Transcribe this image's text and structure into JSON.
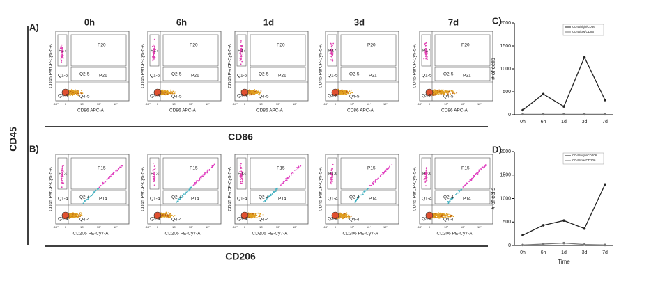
{
  "shared_y_marker": "CD45",
  "panel_a": {
    "label": "A)",
    "timepoints": [
      "0h",
      "6h",
      "1d",
      "3d",
      "7d"
    ],
    "gates": [
      "P17",
      "P20",
      "Q1-5",
      "Q2-5",
      "P21",
      "Q3-5",
      "Q4-5"
    ],
    "y_axis": "CD45 PerCP-Cy5-5-A",
    "x_axis": "CD86 APC-A",
    "marker": "CD86"
  },
  "panel_b": {
    "label": "B)",
    "gates": [
      "P13",
      "P15",
      "Q1-4",
      "Q2-4",
      "P14",
      "Q3-4",
      "Q4-4"
    ],
    "y_axis": "CD45 PerCP-Cy5-5-A",
    "x_axis": "CD206 PE-Cy7-A",
    "marker": "CD206"
  },
  "flow_ticks": [
    "-10³",
    "0",
    "10³",
    "10⁴",
    "10⁵"
  ],
  "chart_data": [
    {
      "type": "line",
      "label": "C)",
      "y_label": "# of cells",
      "categories": [
        "0h",
        "6h",
        "1d",
        "3d",
        "7d"
      ],
      "ylim": [
        0,
        2000
      ],
      "yticks": [
        0,
        500,
        1000,
        1500,
        2000
      ],
      "series": [
        {
          "name": "CD45high/CD86",
          "color": "#222222",
          "values": [
            100,
            450,
            180,
            1250,
            320
          ]
        },
        {
          "name": "CD45low/CD86",
          "color": "#777777",
          "values": [
            10,
            10,
            10,
            10,
            10
          ]
        }
      ]
    },
    {
      "type": "line",
      "label": "D)",
      "y_label": "# of cells",
      "x_label": "Time",
      "categories": [
        "0h",
        "6h",
        "1d",
        "3d",
        "7d"
      ],
      "ylim": [
        0,
        2000
      ],
      "yticks": [
        0,
        500,
        1000,
        1500,
        2000
      ],
      "series": [
        {
          "name": "CD45high/CD206",
          "color": "#222222",
          "values": [
            220,
            430,
            530,
            360,
            1300
          ]
        },
        {
          "name": "CD45low/CD206",
          "color": "#777777",
          "values": [
            10,
            30,
            50,
            20,
            10
          ]
        }
      ]
    }
  ]
}
